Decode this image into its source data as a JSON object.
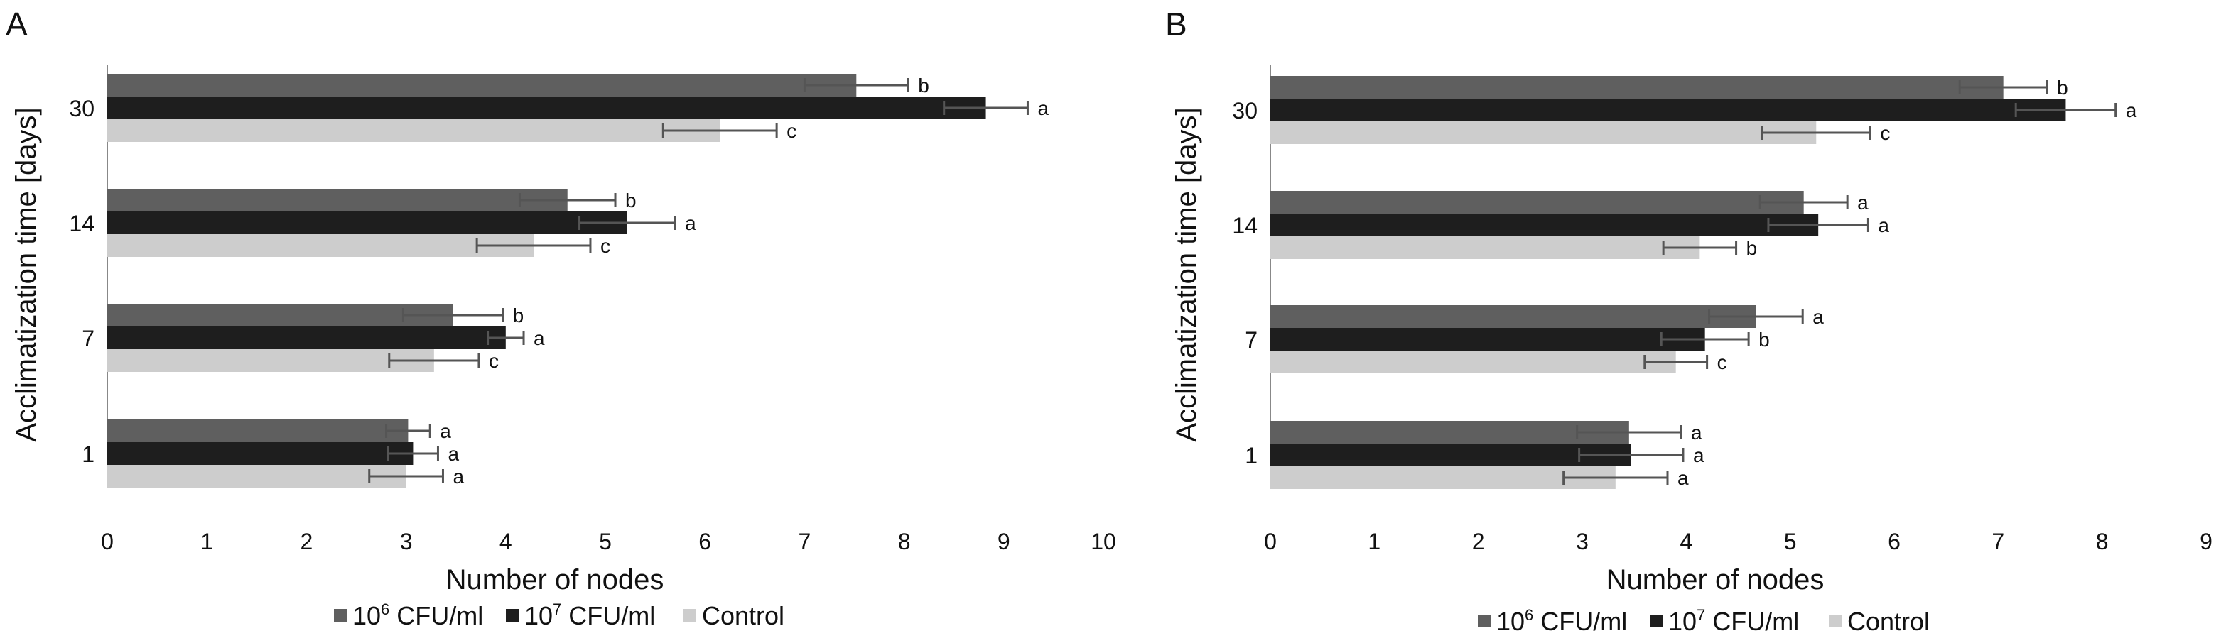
{
  "chart_data": [
    {
      "type": "bar",
      "orientation": "horizontal",
      "panel": "A",
      "ylabel": "Acclimatization time [days]",
      "xlabel": "Number of nodes",
      "xlim": [
        0,
        10
      ],
      "xticks": [
        "0",
        "1",
        "2",
        "3",
        "4",
        "5",
        "6",
        "7",
        "8",
        "9",
        "10"
      ],
      "categories": [
        "1",
        "7",
        "14",
        "30"
      ],
      "series": [
        {
          "name": "10",
          "sup": "6",
          "suffix": " CFU/ml",
          "color": "#5f5f5f",
          "values": [
            3.02,
            3.47,
            4.62,
            7.52
          ],
          "errors": [
            0.22,
            0.5,
            0.48,
            0.52
          ],
          "letters": [
            "a",
            "b",
            "b",
            "b"
          ]
        },
        {
          "name": "10",
          "sup": "7",
          "suffix": " CFU/ml",
          "color": "#1e1e1e",
          "values": [
            3.07,
            4.0,
            5.22,
            8.82
          ],
          "errors": [
            0.25,
            0.18,
            0.48,
            0.42
          ],
          "letters": [
            "a",
            "a",
            "a",
            "a"
          ]
        },
        {
          "name": "Control",
          "sup": "",
          "suffix": "",
          "color": "#cdcdcd",
          "values": [
            3.0,
            3.28,
            4.28,
            6.15
          ],
          "errors": [
            0.37,
            0.45,
            0.57,
            0.57
          ],
          "letters": [
            "a",
            "c",
            "c",
            "c"
          ]
        }
      ],
      "grid": false,
      "legend": "bottom"
    },
    {
      "type": "bar",
      "orientation": "horizontal",
      "panel": "B",
      "ylabel": "Acclimatization time [days]",
      "xlabel": "Number of nodes",
      "xlim": [
        0,
        9
      ],
      "xticks": [
        "0",
        "1",
        "2",
        "3",
        "4",
        "5",
        "6",
        "7",
        "8",
        "9"
      ],
      "categories": [
        "1",
        "7",
        "14",
        "30"
      ],
      "series": [
        {
          "name": "10",
          "sup": "6",
          "suffix": " CFU/ml",
          "color": "#5f5f5f",
          "values": [
            3.45,
            4.67,
            5.13,
            7.05
          ],
          "errors": [
            0.5,
            0.45,
            0.42,
            0.42
          ],
          "letters": [
            "a",
            "a",
            "a",
            "b"
          ]
        },
        {
          "name": "10",
          "sup": "7",
          "suffix": " CFU/ml",
          "color": "#1e1e1e",
          "values": [
            3.47,
            4.18,
            5.27,
            7.65
          ],
          "errors": [
            0.5,
            0.42,
            0.48,
            0.48
          ],
          "letters": [
            "a",
            "b",
            "a",
            "a"
          ]
        },
        {
          "name": "Control",
          "sup": "",
          "suffix": "",
          "color": "#cdcdcd",
          "values": [
            3.32,
            3.9,
            4.13,
            5.25
          ],
          "errors": [
            0.5,
            0.3,
            0.35,
            0.52
          ],
          "letters": [
            "a",
            "c",
            "b",
            "c"
          ]
        }
      ],
      "grid": false,
      "legend": "bottom"
    }
  ]
}
